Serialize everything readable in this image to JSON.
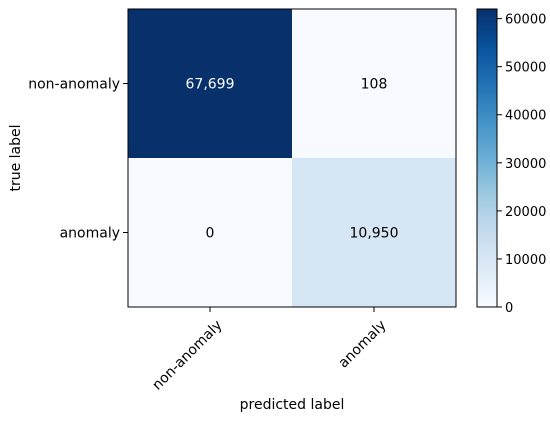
{
  "chart_data": {
    "type": "heatmap",
    "title": "",
    "xlabel": "predicted label",
    "ylabel": "true label",
    "x_categories": [
      "non-anomaly",
      "anomaly"
    ],
    "y_categories": [
      "non-anomaly",
      "anomaly"
    ],
    "values": [
      [
        67699,
        108
      ],
      [
        0,
        10950
      ]
    ],
    "cell_labels": [
      [
        "67,699",
        "108"
      ],
      [
        "0",
        "10,950"
      ]
    ],
    "colormap": "Blues",
    "colorbar": {
      "range": [
        0,
        62000
      ],
      "ticks": [
        0,
        10000,
        20000,
        30000,
        40000,
        50000,
        60000
      ],
      "tick_labels": [
        "0",
        "10000",
        "20000",
        "30000",
        "40000",
        "50000",
        "60000"
      ]
    },
    "x_tick_rotation": 45,
    "grid": false
  }
}
